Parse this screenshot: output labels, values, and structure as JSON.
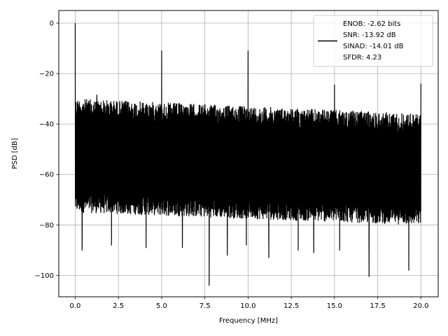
{
  "chart_data": {
    "type": "line",
    "xlabel": "Frequency [MHz]",
    "ylabel": "PSD [dB]",
    "xlim": [
      -0.95,
      21.0
    ],
    "ylim": [
      -108.5,
      5.0
    ],
    "x_ticks": [
      0.0,
      2.5,
      5.0,
      7.5,
      10.0,
      12.5,
      15.0,
      17.5,
      20.0
    ],
    "x_tick_labels": [
      "0.0",
      "2.5",
      "5.0",
      "7.5",
      "10.0",
      "12.5",
      "15.0",
      "17.5",
      "20.0"
    ],
    "y_ticks": [
      0,
      -20,
      -40,
      -60,
      -80,
      -100
    ],
    "y_tick_labels": [
      "0",
      "−20",
      "−40",
      "−60",
      "−80",
      "−100"
    ],
    "grid": true,
    "legend_position": "top-right",
    "series": [
      {
        "name": "ENOB: -2.62 bits\nSNR: -13.92 dB\nSINAD: -14.01 dB\nSFDR: 4.23",
        "color": "#000000",
        "x_range": [
          0.0,
          20.0
        ],
        "noise_floor_upper_db": [
          -30,
          -36
        ],
        "noise_floor_lower_db": [
          -75,
          -80
        ],
        "peaks": [
          {
            "x": 0.0,
            "y": 0.0
          },
          {
            "x": 5.0,
            "y": -11.0
          },
          {
            "x": 10.0,
            "y": -11.0
          },
          {
            "x": 15.0,
            "y": -24.5
          },
          {
            "x": 20.0,
            "y": -24.0
          },
          {
            "x": 1.25,
            "y": -28.5
          }
        ],
        "dips": [
          {
            "x": 0.4,
            "y": -90.0
          },
          {
            "x": 2.1,
            "y": -88.0
          },
          {
            "x": 4.1,
            "y": -89.0
          },
          {
            "x": 6.2,
            "y": -89.0
          },
          {
            "x": 7.75,
            "y": -104.0
          },
          {
            "x": 8.8,
            "y": -92.0
          },
          {
            "x": 9.9,
            "y": -88.0
          },
          {
            "x": 11.2,
            "y": -93.0
          },
          {
            "x": 12.9,
            "y": -90.0
          },
          {
            "x": 13.8,
            "y": -91.0
          },
          {
            "x": 15.3,
            "y": -90.0
          },
          {
            "x": 17.0,
            "y": -100.5
          },
          {
            "x": 19.3,
            "y": -98.0
          }
        ]
      }
    ],
    "legend_lines": [
      "ENOB: -2.62 bits",
      "SNR: -13.92 dB",
      "SINAD: -14.01 dB",
      "SFDR: 4.23"
    ]
  }
}
